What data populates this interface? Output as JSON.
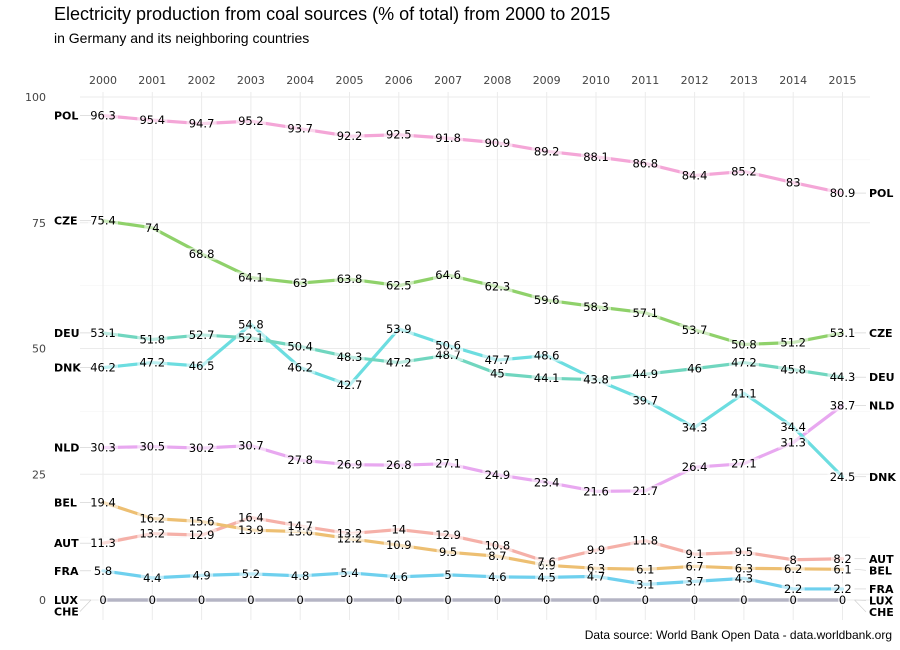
{
  "chart_data": {
    "type": "line",
    "title": "Electricity production from coal sources (% of total) from 2000 to 2015",
    "subtitle": "in Germany and its neighboring countries",
    "caption": "Data source: World Bank Open Data - data.worldbank.org",
    "x": [
      2000,
      2001,
      2002,
      2003,
      2004,
      2005,
      2006,
      2007,
      2008,
      2009,
      2010,
      2011,
      2012,
      2013,
      2014,
      2015
    ],
    "ylim": [
      0,
      100
    ],
    "yticks": [
      0,
      25,
      50,
      75,
      100
    ],
    "grid": true,
    "legend": "none (country codes at line ends)",
    "series": [
      {
        "name": "POL",
        "color": "#f4a6d7",
        "values": [
          96.3,
          95.4,
          94.7,
          95.2,
          93.7,
          92.2,
          92.5,
          91.8,
          90.9,
          89.2,
          88.1,
          86.8,
          84.4,
          85.2,
          83,
          80.9
        ]
      },
      {
        "name": "CZE",
        "color": "#8fd16a",
        "values": [
          75.4,
          74,
          68.8,
          64.1,
          63,
          63.8,
          62.5,
          64.6,
          62.3,
          59.6,
          58.3,
          57.1,
          53.7,
          50.8,
          51.2,
          53.1
        ]
      },
      {
        "name": "DEU",
        "color": "#70d6bf",
        "values": [
          53.1,
          51.8,
          52.7,
          52.1,
          50.4,
          48.3,
          47.2,
          48.7,
          45,
          44.1,
          43.8,
          44.9,
          46,
          47.2,
          45.8,
          44.3
        ]
      },
      {
        "name": "DNK",
        "color": "#6cdde0",
        "values": [
          46.2,
          47.2,
          46.5,
          54.8,
          46.2,
          42.7,
          53.9,
          50.6,
          47.7,
          48.6,
          43.8,
          39.7,
          34.3,
          41.1,
          34.4,
          24.5
        ]
      },
      {
        "name": "NLD",
        "color": "#e8a8f0",
        "values": [
          30.3,
          30.5,
          30.2,
          30.7,
          27.8,
          26.9,
          26.8,
          27.1,
          24.9,
          23.4,
          21.6,
          21.7,
          26.4,
          27.1,
          31.3,
          38.7
        ]
      },
      {
        "name": "BEL",
        "color": "#edbf72",
        "values": [
          19.4,
          16.2,
          15.6,
          13.9,
          13.6,
          12.2,
          10.9,
          9.5,
          8.7,
          6.9,
          6.3,
          6.1,
          6.7,
          6.3,
          6.2,
          6.1
        ]
      },
      {
        "name": "AUT",
        "color": "#f5b0a8",
        "values": [
          11.3,
          13.2,
          12.9,
          16.4,
          14.7,
          13.2,
          14,
          12.9,
          10.8,
          7.6,
          9.9,
          11.8,
          9.1,
          9.5,
          8,
          8.2
        ]
      },
      {
        "name": "FRA",
        "color": "#6ed0ee",
        "values": [
          5.8,
          4.4,
          4.9,
          5.2,
          4.8,
          5.4,
          4.6,
          5,
          4.6,
          4.5,
          4.7,
          3.1,
          3.7,
          4.3,
          2.2,
          2.2
        ]
      },
      {
        "name": "LUX",
        "color": "#b4b4c4",
        "values": [
          0,
          0,
          0,
          0,
          0,
          0,
          0,
          0,
          0,
          0,
          0,
          0,
          0,
          0,
          0,
          0
        ]
      },
      {
        "name": "CHE",
        "color": "#a7a7b8",
        "values": [
          0,
          0,
          0,
          0,
          0,
          0,
          0,
          0,
          0,
          0,
          0,
          0,
          0,
          0,
          0,
          0
        ]
      }
    ]
  }
}
